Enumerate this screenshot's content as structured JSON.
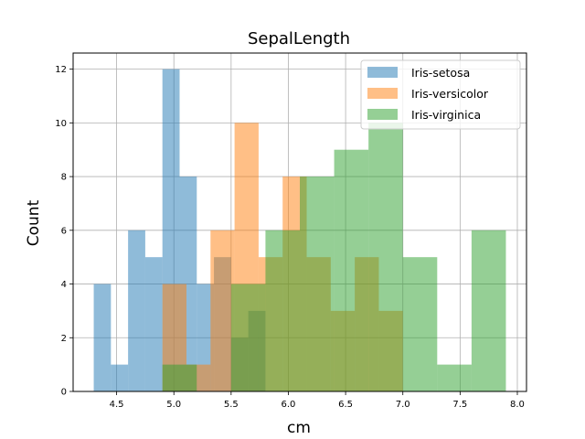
{
  "chart_data": {
    "type": "histogram",
    "title": "SepalLength",
    "xlabel": "cm",
    "ylabel": "Count",
    "xlim": [
      4.12,
      8.08
    ],
    "ylim": [
      0,
      12.6
    ],
    "xticks": [
      4.5,
      5.0,
      5.5,
      6.0,
      6.5,
      7.0,
      7.5,
      8.0
    ],
    "xtick_labels": [
      "4.5",
      "5.0",
      "5.5",
      "6.0",
      "6.5",
      "7.0",
      "7.5",
      "8.0"
    ],
    "yticks": [
      0,
      2,
      4,
      6,
      8,
      10,
      12
    ],
    "ytick_labels": [
      "0",
      "2",
      "4",
      "6",
      "8",
      "10",
      "12"
    ],
    "grid": true,
    "legend_position": "top-right",
    "series": [
      {
        "name": "Iris-setosa",
        "color": "#1f77b4",
        "bins": [
          {
            "x0": 4.3,
            "x1": 4.45,
            "count": 4
          },
          {
            "x0": 4.45,
            "x1": 4.6,
            "count": 1
          },
          {
            "x0": 4.6,
            "x1": 4.75,
            "count": 6
          },
          {
            "x0": 4.75,
            "x1": 4.9,
            "count": 5
          },
          {
            "x0": 4.9,
            "x1": 5.05,
            "count": 12
          },
          {
            "x0": 5.05,
            "x1": 5.2,
            "count": 8
          },
          {
            "x0": 5.2,
            "x1": 5.35,
            "count": 4
          },
          {
            "x0": 5.35,
            "x1": 5.5,
            "count": 5
          },
          {
            "x0": 5.5,
            "x1": 5.65,
            "count": 2
          },
          {
            "x0": 5.65,
            "x1": 5.8,
            "count": 3
          }
        ]
      },
      {
        "name": "Iris-versicolor",
        "color": "#ff7f0e",
        "bins": [
          {
            "x0": 4.9,
            "x1": 5.11,
            "count": 4
          },
          {
            "x0": 5.11,
            "x1": 5.32,
            "count": 1
          },
          {
            "x0": 5.32,
            "x1": 5.53,
            "count": 6
          },
          {
            "x0": 5.53,
            "x1": 5.74,
            "count": 10
          },
          {
            "x0": 5.74,
            "x1": 5.95,
            "count": 5
          },
          {
            "x0": 5.95,
            "x1": 6.16,
            "count": 8
          },
          {
            "x0": 6.16,
            "x1": 6.37,
            "count": 5
          },
          {
            "x0": 6.37,
            "x1": 6.58,
            "count": 3
          },
          {
            "x0": 6.58,
            "x1": 6.79,
            "count": 5
          },
          {
            "x0": 6.79,
            "x1": 7.0,
            "count": 3
          }
        ]
      },
      {
        "name": "Iris-virginica",
        "color": "#2ca02c",
        "bins": [
          {
            "x0": 4.9,
            "x1": 5.2,
            "count": 1
          },
          {
            "x0": 5.2,
            "x1": 5.5,
            "count": 0
          },
          {
            "x0": 5.5,
            "x1": 5.8,
            "count": 4
          },
          {
            "x0": 5.8,
            "x1": 6.1,
            "count": 6
          },
          {
            "x0": 6.1,
            "x1": 6.4,
            "count": 8
          },
          {
            "x0": 6.4,
            "x1": 6.7,
            "count": 9
          },
          {
            "x0": 6.7,
            "x1": 7.0,
            "count": 10
          },
          {
            "x0": 7.0,
            "x1": 7.3,
            "count": 5
          },
          {
            "x0": 7.3,
            "x1": 7.6,
            "count": 1
          },
          {
            "x0": 7.6,
            "x1": 7.9,
            "count": 6
          }
        ]
      }
    ]
  }
}
